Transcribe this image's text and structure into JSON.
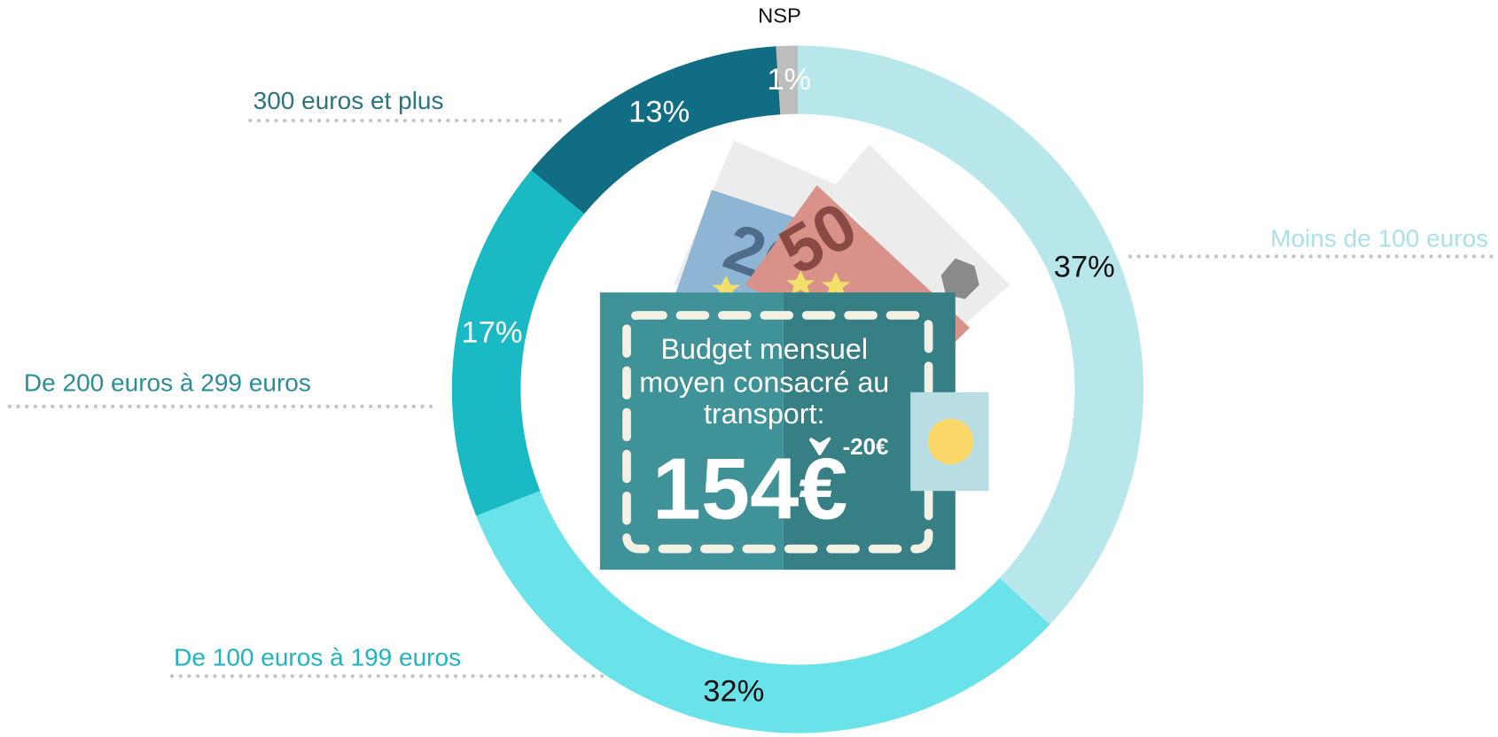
{
  "chart_data": {
    "type": "pie",
    "categories": [
      "Moins de 100 euros",
      "De 100 euros à 199 euros",
      "De 200 euros à 299 euros",
      "300 euros et plus",
      "NSP"
    ],
    "values": [
      37,
      32,
      17,
      13,
      1
    ],
    "value_labels": [
      "37%",
      "32%",
      "17%",
      "13%",
      "1%"
    ],
    "colors": [
      "#b8e7eb",
      "#69e2ea",
      "#1abac4",
      "#106d83",
      "#bdbdbd"
    ],
    "label_colors": [
      "#a9e1e7",
      "#1fb4c0",
      "#2b8d97",
      "#2a7480",
      "#111111"
    ],
    "value_label_colors": [
      "#111111",
      "#111111",
      "#ffffff",
      "#ffffff",
      "#ffffff"
    ],
    "start_angle": -90,
    "direction": "clockwise",
    "donut": true,
    "center_title_lines": [
      "Budget mensuel",
      "moyen consacré au",
      "transport:"
    ],
    "center_value": "154€",
    "center_change": "-20€"
  }
}
